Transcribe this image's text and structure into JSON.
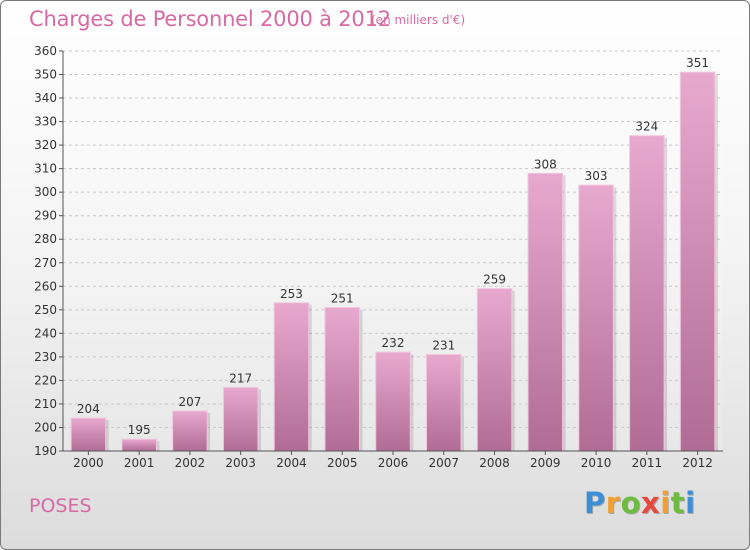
{
  "header": {
    "title": "Charges de Personnel 2000 à 2012",
    "subtitle": "(en milliers d'€)"
  },
  "footer": {
    "place": "POSES",
    "logo": "Proxiti"
  },
  "colors": {
    "bar_top": "#e8a9cf",
    "bar_bottom": "#b06c95",
    "title": "#d86aa3",
    "grid": "#c9c9c9"
  },
  "chart_data": {
    "type": "bar",
    "title": "Charges de Personnel 2000 à 2012",
    "subtitle": "(en milliers d'€)",
    "categories": [
      "2000",
      "2001",
      "2002",
      "2003",
      "2004",
      "2005",
      "2006",
      "2007",
      "2008",
      "2009",
      "2010",
      "2011",
      "2012"
    ],
    "values": [
      204,
      195,
      207,
      217,
      253,
      251,
      232,
      231,
      259,
      308,
      303,
      324,
      351
    ],
    "ylim": [
      190,
      360
    ],
    "ytick_step": 10,
    "grid": true,
    "legend": "none"
  }
}
